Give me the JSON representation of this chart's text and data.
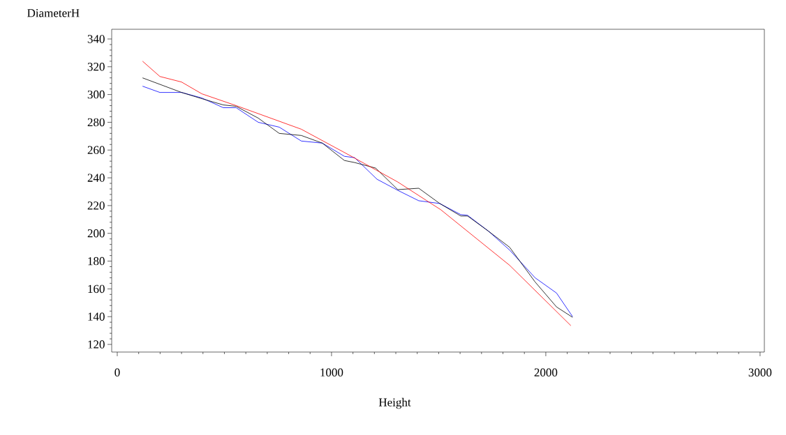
{
  "chart_data": {
    "type": "line",
    "xlabel": "Height",
    "ylabel": "DiameterH",
    "xlim": [
      -26,
      3020
    ],
    "ylim": [
      114.5,
      347
    ],
    "xticks": [
      0,
      1000,
      2000,
      3000
    ],
    "yticks": [
      120,
      140,
      160,
      180,
      200,
      220,
      240,
      260,
      280,
      300,
      320,
      340
    ],
    "grid": false,
    "marker": "none",
    "line_style": "solid",
    "series": [
      {
        "color": "#0000ff",
        "x": [
          118,
          199,
          300,
          395,
          495,
          555,
          658,
          756,
          859,
          957,
          1060,
          1108,
          1212,
          1309,
          1407,
          1505,
          1603,
          1635,
          1733,
          1831,
          1950,
          2050,
          2125
        ],
        "values": [
          306,
          301.5,
          301.5,
          297.5,
          290.5,
          290.5,
          280,
          276.5,
          266.5,
          265,
          255.5,
          254.5,
          239,
          231,
          223.5,
          221.5,
          213.5,
          213,
          201.5,
          188,
          168,
          157,
          140
        ]
      },
      {
        "color": "#000000",
        "x": [
          118,
          300,
          395,
          495,
          555,
          658,
          756,
          859,
          957,
          1060,
          1108,
          1206,
          1309,
          1407,
          1505,
          1603,
          1635,
          1733,
          1831,
          1950,
          2050,
          2125
        ],
        "values": [
          312,
          301.5,
          297,
          292.5,
          291.5,
          283,
          272,
          270.5,
          265,
          252.5,
          251,
          247,
          231.5,
          232.5,
          221.5,
          212.5,
          212.5,
          201.5,
          190,
          165,
          147,
          139.5
        ]
      },
      {
        "color": "#ff0000",
        "x": [
          118,
          199,
          300,
          395,
          555,
          859,
          1081,
          1309,
          1510,
          1831,
          2117
        ],
        "values": [
          324,
          313,
          309,
          300.5,
          292,
          275,
          256.5,
          237,
          217,
          177,
          133.5
        ]
      }
    ]
  }
}
